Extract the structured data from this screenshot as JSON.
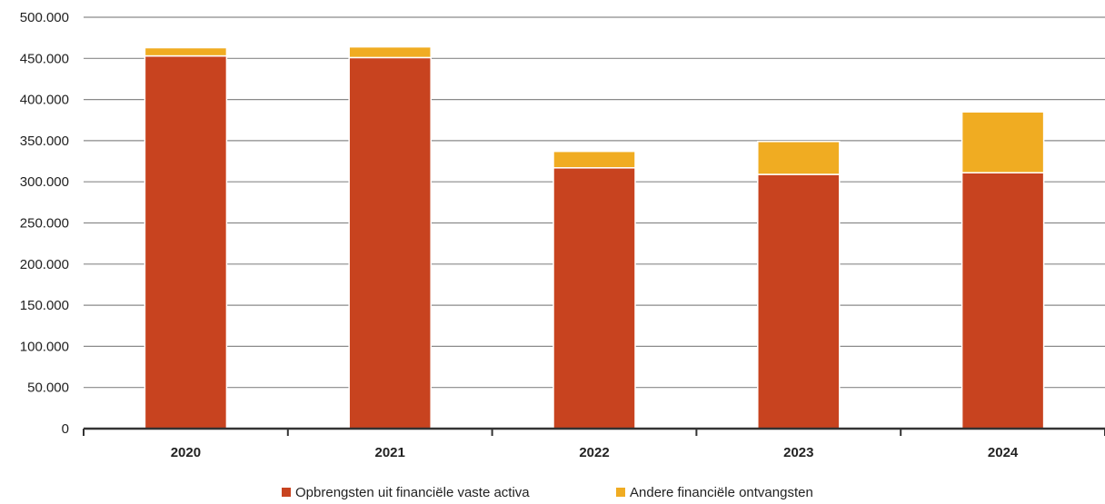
{
  "chart_data": {
    "type": "bar",
    "stacked": true,
    "categories": [
      "2020",
      "2021",
      "2022",
      "2023",
      "2024"
    ],
    "series": [
      {
        "name": "Opbrengsten uit financiële vaste activa",
        "color": "#c8431f",
        "values": [
          453000,
          451000,
          317000,
          309000,
          311000
        ]
      },
      {
        "name": "Andere financiële ontvangsten",
        "color": "#f0ac22",
        "values": [
          10000,
          13000,
          20000,
          40000,
          74000
        ]
      }
    ],
    "y_ticks": [
      "0",
      "50.000",
      "100.000",
      "150.000",
      "200.000",
      "250.000",
      "300.000",
      "350.000",
      "400.000",
      "450.000",
      "500.000"
    ],
    "ylim": [
      0,
      500000
    ],
    "grid": true,
    "legend_position": "bottom",
    "title": "",
    "xlabel": "",
    "ylabel": ""
  }
}
